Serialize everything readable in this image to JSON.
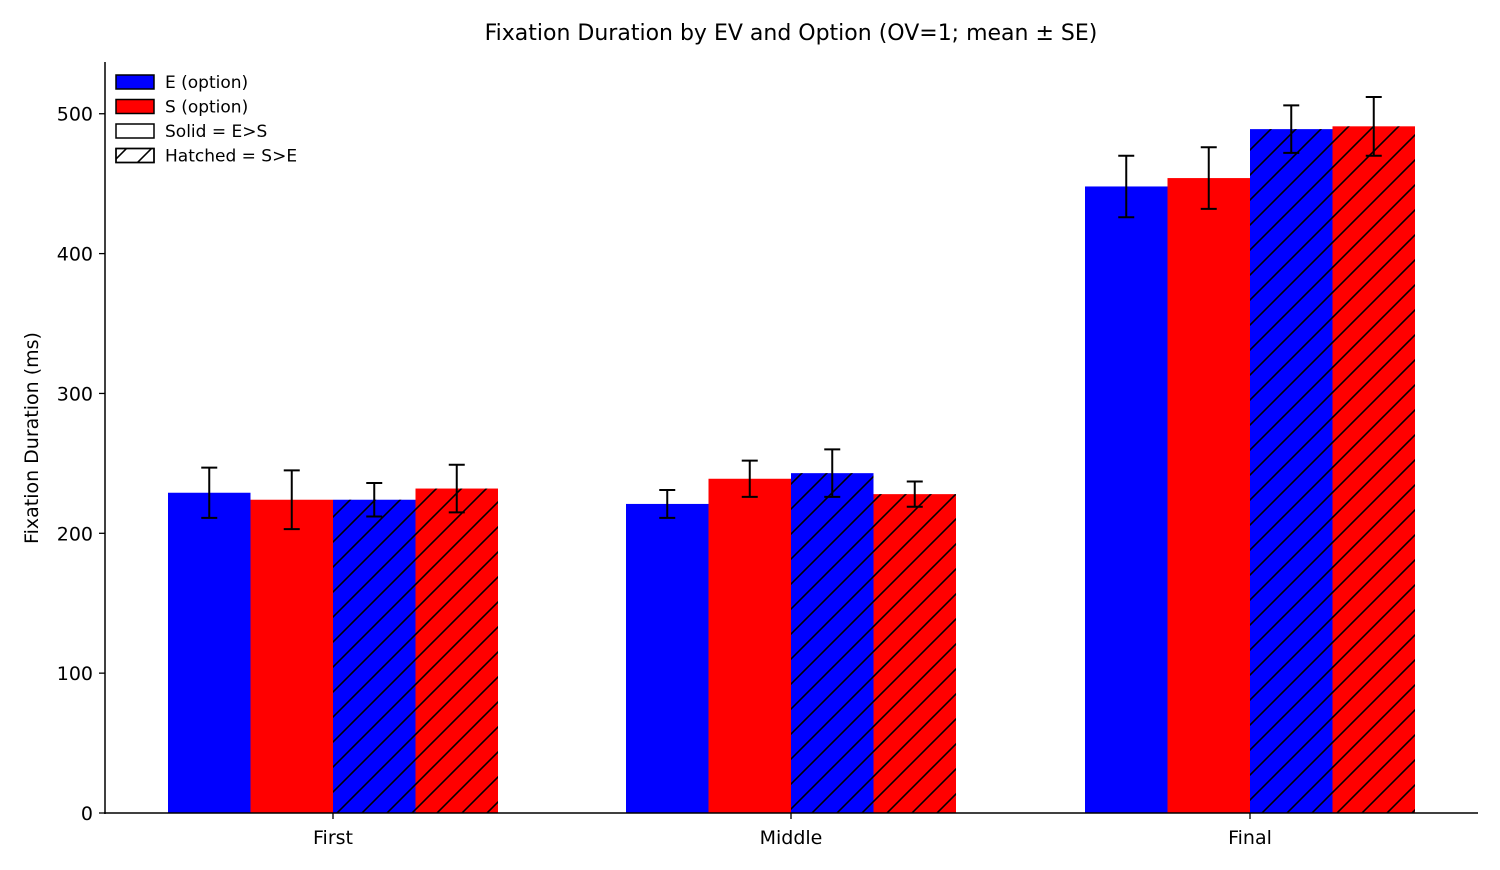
{
  "chart_data": {
    "type": "bar",
    "title": "Fixation Duration by EV and Option (OV=1; mean ± SE)",
    "xlabel": "",
    "ylabel": "Fixation Duration (ms)",
    "categories": [
      "First",
      "Middle",
      "Final"
    ],
    "ylim": [
      0,
      537
    ],
    "yticks": [
      0,
      100,
      200,
      300,
      400,
      500
    ],
    "grid": false,
    "legend_position": "top-left",
    "series": [
      {
        "name": "E (option)",
        "option": "E",
        "condition": "E>S",
        "color": "#0000ff",
        "hatched": false,
        "values": [
          229,
          221,
          448
        ],
        "errors": [
          18,
          10,
          22
        ]
      },
      {
        "name": "S (option)",
        "option": "S",
        "condition": "E>S",
        "color": "#ff0000",
        "hatched": false,
        "values": [
          224,
          239,
          454
        ],
        "errors": [
          21,
          13,
          22
        ]
      },
      {
        "option": "E",
        "condition": "S>E",
        "color": "#0000ff",
        "hatched": true,
        "values": [
          224,
          243,
          489
        ],
        "errors": [
          12,
          17,
          17
        ]
      },
      {
        "option": "S",
        "condition": "S>E",
        "color": "#ff0000",
        "hatched": true,
        "values": [
          232,
          228,
          491
        ],
        "errors": [
          17,
          9,
          21
        ]
      }
    ],
    "legend": [
      {
        "label": "E (option)",
        "color": "#0000ff",
        "hatched": false
      },
      {
        "label": "S (option)",
        "color": "#ff0000",
        "hatched": false
      },
      {
        "label": "Solid = E>S",
        "color": "#ffffff",
        "hatched": false
      },
      {
        "label": "Hatched = S>E",
        "color": "#ffffff",
        "hatched": true
      }
    ]
  }
}
